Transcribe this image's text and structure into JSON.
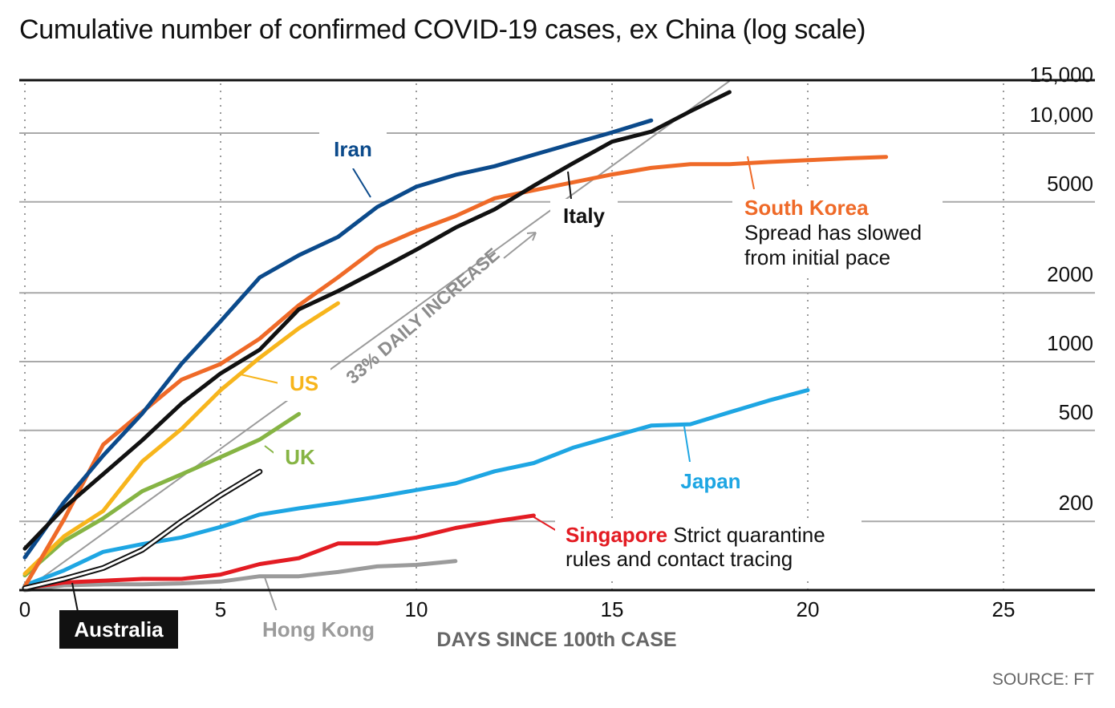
{
  "title": "Cumulative number of confirmed COVID-19 cases, ex China (log scale)",
  "source": "SOURCE: FT",
  "colors": {
    "Iran": "#0b4a8b",
    "South Korea": "#ef6a28",
    "Italy": "#111111",
    "US": "#f7b51c",
    "UK": "#86b444",
    "Japan": "#1ea6e3",
    "Singapore": "#e31c23",
    "Hong Kong": "#9b9b9b",
    "Australia": "#111111",
    "reference": "#9b9b9b"
  },
  "annotations": {
    "reference_label": "33% DAILY INCREASE",
    "south_korea_note": [
      "Spread has slowed",
      "from initial pace"
    ],
    "singapore_note": [
      "Strict quarantine",
      "rules and contact  tracing"
    ]
  },
  "chart_data": {
    "type": "line",
    "title": "Cumulative number of confirmed COVID-19 cases, ex China (log scale)",
    "xlabel": "DAYS SINCE 100th CASE",
    "ylabel": "",
    "xlim": [
      0,
      26.5
    ],
    "ylim": [
      100,
      16000
    ],
    "yscale": "log",
    "xticks": [
      0,
      5,
      10,
      15,
      20,
      25
    ],
    "xtick_labels": [
      "0",
      "5",
      "10",
      "15",
      "20",
      "25"
    ],
    "yticks": [
      200,
      500,
      1000,
      2000,
      5000,
      10000,
      15000
    ],
    "ytick_labels": [
      "200",
      "500",
      "1000",
      "2000",
      "5000",
      "10,000",
      "15,000"
    ],
    "grid": "horizontal solid, vertical dotted",
    "reference_line": {
      "label": "33% DAILY INCREASE",
      "x": [
        0,
        18
      ],
      "y": [
        100,
        16900
      ]
    },
    "series": [
      {
        "name": "Iran",
        "x": [
          0,
          1,
          2,
          3,
          4,
          5,
          6,
          7,
          8,
          9,
          10,
          11,
          12,
          13,
          14,
          15,
          16
        ],
        "y": [
          139,
          243,
          388,
          593,
          978,
          1501,
          2336,
          2922,
          3513,
          4747,
          5823,
          6566,
          7161,
          8042,
          9000,
          10075,
          11364
        ]
      },
      {
        "name": "South Korea",
        "x": [
          0,
          1,
          2,
          3,
          4,
          5,
          6,
          7,
          8,
          9,
          10,
          11,
          12,
          13,
          14,
          15,
          16,
          17,
          18,
          19,
          20,
          21,
          22
        ],
        "y": [
          104,
          204,
          433,
          602,
          833,
          977,
          1261,
          1766,
          2337,
          3150,
          3736,
          4335,
          5186,
          5621,
          6088,
          6593,
          7041,
          7314,
          7313,
          7478,
          7613,
          7755,
          7869
        ]
      },
      {
        "name": "Italy",
        "x": [
          0,
          1,
          2,
          3,
          4,
          5,
          6,
          7,
          8,
          9,
          10,
          11,
          12,
          13,
          14,
          15,
          16,
          17,
          18
        ],
        "y": [
          152,
          229,
          322,
          453,
          655,
          888,
          1128,
          1694,
          2036,
          2502,
          3089,
          3858,
          4636,
          5883,
          7375,
          9172,
          10149,
          12462,
          15113
        ]
      },
      {
        "name": "US",
        "x": [
          0,
          1,
          2,
          3,
          4,
          5,
          6,
          7,
          8
        ],
        "y": [
          118,
          172,
          222,
          366,
          507,
          750,
          1040,
          1400,
          1800
        ]
      },
      {
        "name": "UK",
        "x": [
          0,
          1,
          2,
          3,
          4,
          5,
          6,
          7
        ],
        "y": [
          116,
          164,
          206,
          271,
          321,
          382,
          456,
          590
        ]
      },
      {
        "name": "Japan",
        "x": [
          0,
          1,
          2,
          3,
          4,
          5,
          6,
          7,
          8,
          9,
          10,
          11,
          12,
          13,
          14,
          15,
          16,
          17,
          18,
          19,
          20
        ],
        "y": [
          105,
          122,
          147,
          159,
          170,
          189,
          214,
          228,
          241,
          256,
          274,
          293,
          331,
          360,
          420,
          470,
          525,
          532,
          600,
          675,
          750
        ]
      },
      {
        "name": "Singapore",
        "x": [
          0,
          1,
          2,
          3,
          4,
          5,
          6,
          7,
          8,
          9,
          10,
          11,
          12,
          13
        ],
        "y": [
          102,
          108,
          110,
          112,
          112,
          117,
          130,
          138,
          160,
          160,
          170,
          187,
          200,
          212
        ]
      },
      {
        "name": "Hong Kong",
        "x": [
          0,
          1,
          2,
          3,
          4,
          5,
          6,
          7,
          8,
          9,
          10,
          11
        ],
        "y": [
          100,
          105,
          106,
          106,
          107,
          109,
          115,
          115,
          120,
          127,
          129,
          134
        ]
      },
      {
        "name": "Australia",
        "x": [
          0,
          1,
          2,
          3,
          4,
          5,
          6
        ],
        "y": [
          102,
          112,
          125,
          150,
          200,
          260,
          330
        ]
      }
    ]
  }
}
